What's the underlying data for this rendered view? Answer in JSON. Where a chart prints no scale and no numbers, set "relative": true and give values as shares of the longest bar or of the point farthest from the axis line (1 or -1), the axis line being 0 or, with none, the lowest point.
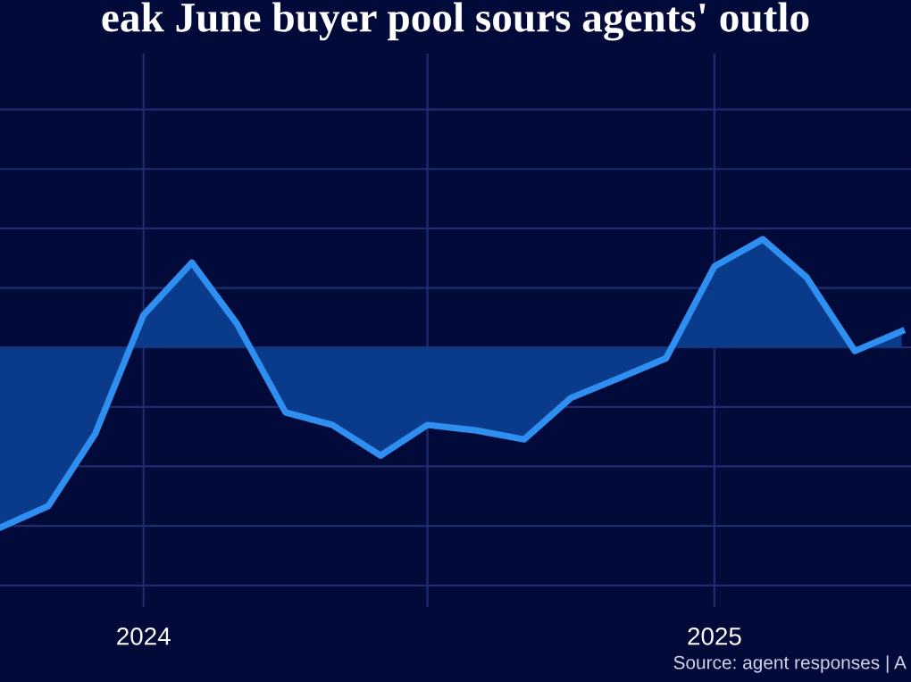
{
  "chart_data": {
    "type": "area",
    "title": "eak June buyer pool sours agents' outlo",
    "relative": true,
    "x": [
      "2023-10",
      "2023-11",
      "2023-12",
      "2024-01",
      "2024-02",
      "2024-03",
      "2024-04",
      "2024-05",
      "2024-06",
      "2024-07",
      "2024-08",
      "2024-09",
      "2024-10",
      "2024-11",
      "2024-12",
      "2025-01",
      "2025-02",
      "2025-03",
      "2025-04",
      "2025-05"
    ],
    "series": [
      {
        "color": "#2e8ff0",
        "values": [
          -1,
          -0.88,
          -0.48,
          0.18,
          0.47,
          0.13,
          -0.36,
          -0.43,
          -0.6,
          -0.43,
          -0.46,
          -0.51,
          -0.28,
          -0.17,
          -0.06,
          0.45,
          0.6,
          0.39,
          -0.02,
          0.09
        ]
      }
    ],
    "xlim": [
      "2023-10-01",
      "2025-05-07"
    ],
    "xticks": [
      {
        "value": "2024-01",
        "label": "2024"
      },
      {
        "value": "2024-07",
        "label": null
      },
      {
        "value": "2025-01",
        "label": "2025"
      }
    ],
    "tick_labels": "x",
    "grid": true,
    "annotations": [
      "Source: agent responses | A"
    ]
  }
}
